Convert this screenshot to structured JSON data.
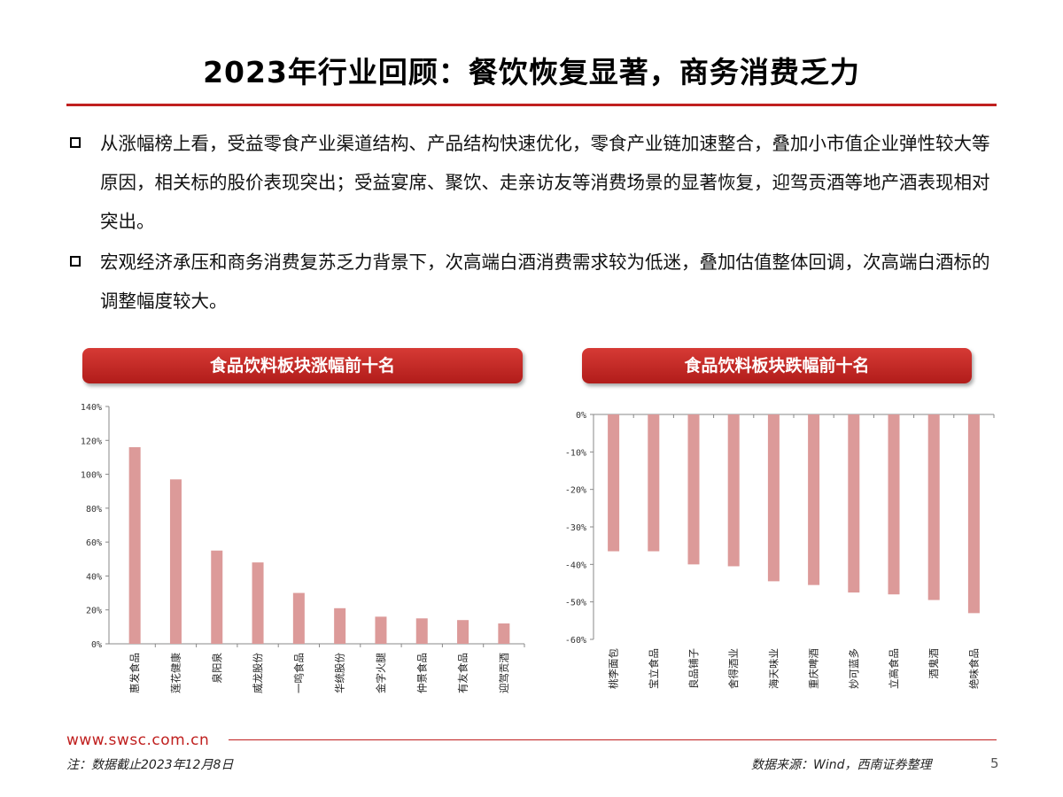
{
  "slide": {
    "title": "2023年行业回顾：餐饮恢复显著，商务消费乏力",
    "bullets": [
      "从涨幅榜上看，受益零食产业渠道结构、产品结构快速优化，零食产业链加速整合，叠加小市值企业弹性较大等原因，相关标的股价表现突出；受益宴席、聚饮、走亲访友等消费场景的显著恢复，迎驾贡酒等地产酒表现相对突出。",
      "宏观经济承压和商务消费复苏乏力背景下，次高端白酒消费需求较为低迷，叠加估值整体回调，次高端白酒标的调整幅度较大。"
    ],
    "footer": {
      "url": "www.swsc.com.cn",
      "note": "注：数据截止2023年12月8日",
      "source": "数据来源：Wind，西南证券整理",
      "page": "5"
    }
  },
  "colors": {
    "accent": "#c0201f",
    "bar": "#dc9a99"
  },
  "chart_data": [
    {
      "type": "bar",
      "title": "食品饮料板块涨幅前十名",
      "categories": [
        "惠发食品",
        "莲花健康",
        "泉阳泉",
        "威龙股份",
        "一鸣食品",
        "华统股份",
        "金字火腿",
        "仲景食品",
        "有友食品",
        "迎驾贡酒"
      ],
      "values": [
        116,
        97,
        55,
        48,
        30,
        21,
        16,
        15,
        14,
        12
      ],
      "ylim": [
        0,
        140
      ],
      "yticks": [
        0,
        20,
        40,
        60,
        80,
        100,
        120,
        140
      ],
      "tick_labels": [
        "0%",
        "20%",
        "40%",
        "60%",
        "80%",
        "100%",
        "120%",
        "140%"
      ],
      "unit": "%"
    },
    {
      "type": "bar",
      "title": "食品饮料板块跌幅前十名",
      "categories": [
        "桃李面包",
        "宝立食品",
        "良品铺子",
        "舍得酒业",
        "海天味业",
        "重庆啤酒",
        "妙可蓝多",
        "立高食品",
        "酒鬼酒",
        "绝味食品"
      ],
      "values": [
        -36.5,
        -36.5,
        -40,
        -40.5,
        -44.5,
        -45.5,
        -47.5,
        -48,
        -49.5,
        -53
      ],
      "ylim": [
        -60,
        0
      ],
      "yticks": [
        0,
        -10,
        -20,
        -30,
        -40,
        -50,
        -60
      ],
      "tick_labels": [
        "0%",
        "-10%",
        "-20%",
        "-30%",
        "-40%",
        "-50%",
        "-60%"
      ],
      "unit": "%"
    }
  ]
}
